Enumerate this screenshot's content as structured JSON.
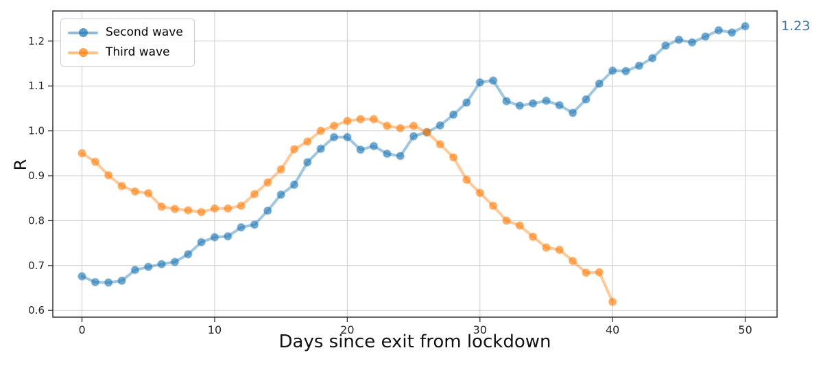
{
  "chart_data": {
    "type": "line",
    "title": "",
    "xlabel": "Days since exit from lockdown",
    "ylabel": "R",
    "xlim": [
      -2.2,
      52.4
    ],
    "ylim": [
      0.585,
      1.267
    ],
    "x_ticks": [
      0,
      10,
      20,
      30,
      40,
      50
    ],
    "y_ticks": [
      0.6,
      0.7,
      0.8,
      0.9,
      1.0,
      1.1,
      1.2
    ],
    "grid": true,
    "legend_position": "upper left",
    "annotation": {
      "text": "1.23",
      "color": "#3a72a8"
    },
    "series": [
      {
        "name": "Second wave",
        "color": "#1f77b4",
        "x": [
          0,
          1,
          2,
          3,
          4,
          5,
          6,
          7,
          8,
          9,
          10,
          11,
          12,
          13,
          14,
          15,
          16,
          17,
          18,
          19,
          20,
          21,
          22,
          23,
          24,
          25,
          26,
          27,
          28,
          29,
          30,
          31,
          32,
          33,
          34,
          35,
          36,
          37,
          38,
          39,
          40,
          41,
          42,
          43,
          44,
          45,
          46,
          47,
          48,
          49,
          50
        ],
        "values": [
          0.676,
          0.663,
          0.662,
          0.666,
          0.69,
          0.697,
          0.703,
          0.708,
          0.725,
          0.752,
          0.763,
          0.765,
          0.785,
          0.791,
          0.822,
          0.858,
          0.88,
          0.93,
          0.96,
          0.986,
          0.986,
          0.958,
          0.966,
          0.949,
          0.944,
          0.988,
          0.997,
          1.012,
          1.036,
          1.063,
          1.108,
          1.112,
          1.066,
          1.056,
          1.061,
          1.067,
          1.057,
          1.04,
          1.07,
          1.105,
          1.134,
          1.133,
          1.145,
          1.162,
          1.19,
          1.203,
          1.197,
          1.21,
          1.224,
          1.219,
          1.233
        ]
      },
      {
        "name": "Third wave",
        "color": "#ff7f0e",
        "x": [
          0,
          1,
          2,
          3,
          4,
          5,
          6,
          7,
          8,
          9,
          10,
          11,
          12,
          13,
          14,
          15,
          16,
          17,
          18,
          19,
          20,
          21,
          22,
          23,
          24,
          25,
          26,
          27,
          28,
          29,
          30,
          31,
          32,
          33,
          34,
          35,
          36,
          37,
          38,
          39,
          40
        ],
        "values": [
          0.95,
          0.931,
          0.901,
          0.877,
          0.865,
          0.861,
          0.831,
          0.826,
          0.823,
          0.819,
          0.827,
          0.827,
          0.833,
          0.859,
          0.885,
          0.914,
          0.959,
          0.976,
          1.0,
          1.011,
          1.022,
          1.026,
          1.026,
          1.011,
          1.006,
          1.011,
          0.997,
          0.97,
          0.941,
          0.891,
          0.862,
          0.833,
          0.8,
          0.789,
          0.764,
          0.74,
          0.735,
          0.71,
          0.684,
          0.685,
          0.619
        ]
      }
    ]
  }
}
